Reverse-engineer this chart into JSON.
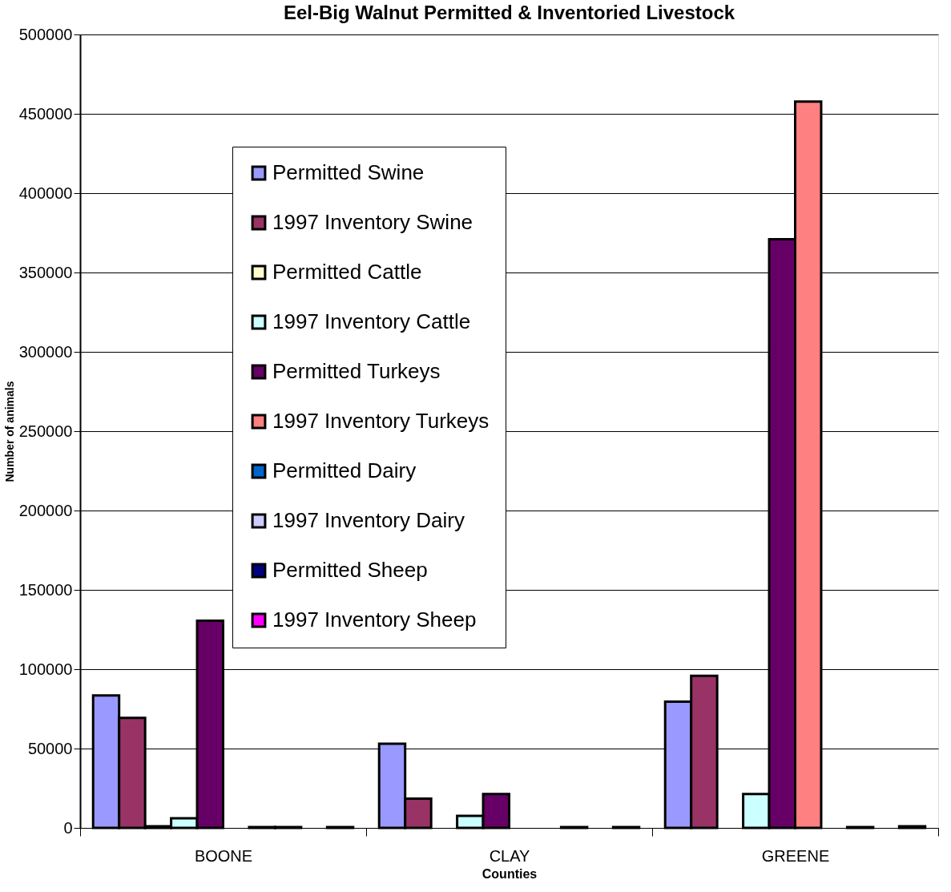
{
  "chart_data": {
    "type": "bar",
    "title": "Eel-Big Walnut Permitted & Inventoried Livestock",
    "xlabel": "Counties",
    "ylabel": "Number of animals",
    "categories": [
      "BOONE",
      "CLAY",
      "GREENE"
    ],
    "series": [
      {
        "name": "Permitted Swine",
        "color": "#9999ff",
        "values": [
          83500,
          53000,
          79500
        ]
      },
      {
        "name": "1997 Inventory Swine",
        "color": "#993366",
        "values": [
          69300,
          18400,
          95800
        ]
      },
      {
        "name": "Permitted Cattle",
        "color": "#ffffcc",
        "values": [
          1000,
          0,
          0
        ]
      },
      {
        "name": "1997 Inventory Cattle",
        "color": "#ccffff",
        "values": [
          6000,
          7600,
          21400
        ]
      },
      {
        "name": "Permitted Turkeys",
        "color": "#660066",
        "values": [
          130500,
          21400,
          371000
        ]
      },
      {
        "name": "1997 Inventory Turkeys",
        "color": "#ff8080",
        "values": [
          0,
          0,
          457700
        ]
      },
      {
        "name": "Permitted Dairy",
        "color": "#0066cc",
        "values": [
          500,
          0,
          0
        ]
      },
      {
        "name": "1997 Inventory Dairy",
        "color": "#ccccff",
        "values": [
          500,
          500,
          500
        ]
      },
      {
        "name": "Permitted Sheep",
        "color": "#000080",
        "values": [
          0,
          0,
          0
        ]
      },
      {
        "name": "1997 Inventory Sheep",
        "color": "#ff00ff",
        "values": [
          500,
          500,
          1000
        ]
      }
    ],
    "ylim": [
      0,
      500000
    ],
    "yticks": [
      0,
      50000,
      100000,
      150000,
      200000,
      250000,
      300000,
      350000,
      400000,
      450000,
      500000
    ],
    "grid": "y",
    "legend": "top"
  }
}
